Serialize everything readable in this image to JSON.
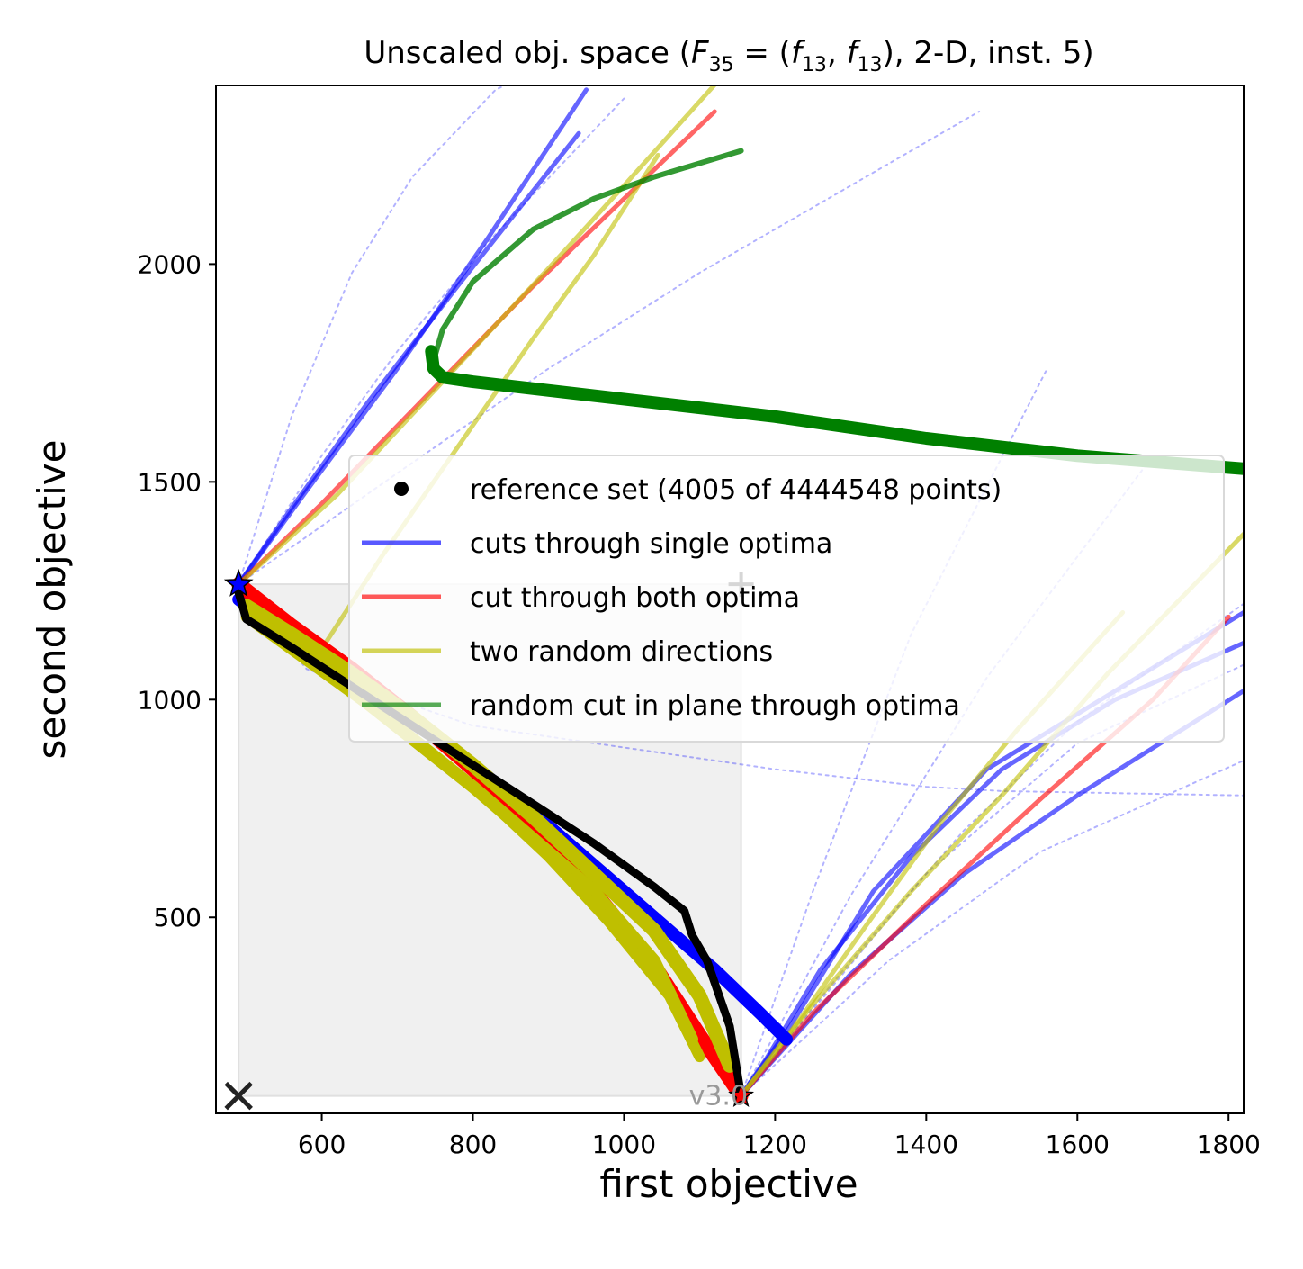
{
  "chart_data": {
    "type": "line",
    "title": "Unscaled obj. space (F35 = (f13, f13), 2-D, inst. 5)",
    "title_parts": {
      "prefix": "Unscaled obj. space (",
      "F": "F",
      "F_sub": "35",
      "eq": " = (",
      "f": "f",
      "f_sub": "13",
      "sep": ", ",
      "suffix": "), 2-D, inst. 5)"
    },
    "xlabel": "first objective",
    "ylabel": "second objective",
    "xlim": [
      460,
      1820
    ],
    "ylim": [
      50,
      2410
    ],
    "xticks": [
      600,
      800,
      1000,
      1200,
      1400,
      1600,
      1800
    ],
    "yticks": [
      500,
      1000,
      1500,
      2000
    ],
    "legend": {
      "placement": "center-right",
      "entries": [
        {
          "label": "reference set (4005 of 4444548 points)",
          "color": "#000000",
          "marker": "dot"
        },
        {
          "label": "cuts through single optima",
          "color": "#0000ff"
        },
        {
          "label": "cut through both optima",
          "color": "#ff0000"
        },
        {
          "label": "two random directions",
          "color": "#bfbf00"
        },
        {
          "label": "random cut in plane through optima",
          "color": "#008000"
        }
      ]
    },
    "ideal_point": {
      "x": 490,
      "y": 1265
    },
    "nadir_point": {
      "x": 1155,
      "y": 90
    },
    "nadir_marker_point": {
      "x": 1155,
      "y": 1265
    },
    "reference_point": {
      "x": 490,
      "y": 90
    },
    "region": {
      "x0": 490,
      "x1": 1155,
      "y0": 90,
      "y1": 1265,
      "color": "#f0f0f0"
    },
    "watermark": "v3.0",
    "series": [
      {
        "name": "reference set (4005 of 4444548 points)",
        "kind": "front",
        "color": "#000000",
        "width": 9,
        "opacity": 1,
        "x": [
          490,
          500,
          560,
          640,
          720,
          800,
          880,
          960,
          1040,
          1080,
          1090,
          1110,
          1140,
          1155
        ],
        "y": [
          1245,
          1185,
          1120,
          1030,
          940,
          850,
          760,
          670,
          570,
          515,
          460,
          400,
          250,
          90
        ]
      },
      {
        "kind": "dotted",
        "color": "#0000ff",
        "width": 2,
        "opacity": 0.3,
        "x": [
          490,
          560,
          640,
          720,
          830,
          950
        ],
        "y": [
          1265,
          1650,
          1980,
          2200,
          2400,
          2500
        ]
      },
      {
        "kind": "dotted",
        "color": "#0000ff",
        "width": 2,
        "opacity": 0.3,
        "x": [
          490,
          600,
          700,
          820,
          1000
        ],
        "y": [
          1265,
          1560,
          1800,
          2050,
          2380
        ]
      },
      {
        "kind": "dotted",
        "color": "#0000ff",
        "width": 2,
        "opacity": 0.3,
        "x": [
          490,
          700,
          900,
          1100,
          1300,
          1470
        ],
        "y": [
          1265,
          1520,
          1760,
          1980,
          2180,
          2350
        ]
      },
      {
        "kind": "dotted",
        "color": "#0000ff",
        "width": 2,
        "opacity": 0.3,
        "x": [
          490,
          580,
          800,
          1000,
          1200,
          1400,
          1500,
          1820
        ],
        "y": [
          1265,
          1070,
          940,
          890,
          840,
          800,
          790,
          780
        ]
      },
      {
        "kind": "dotted",
        "color": "#0000ff",
        "width": 2,
        "opacity": 0.3,
        "x": [
          1155,
          1300,
          1450,
          1600,
          1820
        ],
        "y": [
          90,
          400,
          700,
          950,
          1220
        ]
      },
      {
        "kind": "dotted",
        "color": "#0000ff",
        "width": 2,
        "opacity": 0.3,
        "x": [
          1155,
          1350,
          1550,
          1820
        ],
        "y": [
          90,
          400,
          650,
          860
        ]
      },
      {
        "kind": "dotted",
        "color": "#0000ff",
        "width": 2,
        "opacity": 0.3,
        "x": [
          1155,
          1300,
          1480,
          1700
        ],
        "y": [
          90,
          550,
          1050,
          1560
        ]
      },
      {
        "kind": "dotted",
        "color": "#0000ff",
        "width": 2,
        "opacity": 0.3,
        "x": [
          1155,
          1250,
          1380,
          1560
        ],
        "y": [
          90,
          560,
          1150,
          1760
        ]
      },
      {
        "kind": "dotted",
        "color": "#0000ff",
        "width": 2,
        "opacity": 0.3,
        "x": [
          1155,
          1400,
          1600,
          1820
        ],
        "y": [
          90,
          600,
          900,
          1080
        ]
      },
      {
        "name": "cuts through single optima",
        "kind": "cut",
        "color": "#0000ff",
        "width": 5,
        "opacity": 0.6,
        "x": [
          490,
          560,
          660,
          780,
          940
        ],
        "y": [
          1265,
          1440,
          1680,
          1950,
          2300
        ]
      },
      {
        "kind": "cut",
        "color": "#0000ff",
        "width": 5,
        "opacity": 0.6,
        "x": [
          490,
          580,
          700,
          820,
          950
        ],
        "y": [
          1265,
          1480,
          1760,
          2060,
          2400
        ]
      },
      {
        "kind": "cut",
        "color": "#0000ff",
        "width": 5,
        "opacity": 0.6,
        "x": [
          1155,
          1190,
          1260,
          1380,
          1500,
          1650,
          1820
        ],
        "y": [
          90,
          180,
          380,
          640,
          840,
          1000,
          1130
        ]
      },
      {
        "kind": "cut",
        "color": "#0000ff",
        "width": 5,
        "opacity": 0.6,
        "x": [
          1155,
          1220,
          1330,
          1480,
          1650,
          1820
        ],
        "y": [
          90,
          250,
          560,
          840,
          1020,
          1200
        ]
      },
      {
        "kind": "cut",
        "color": "#0000ff",
        "width": 5,
        "opacity": 0.6,
        "x": [
          1155,
          1300,
          1450,
          1600,
          1820
        ],
        "y": [
          90,
          370,
          600,
          780,
          1020
        ]
      },
      {
        "kind": "thick",
        "color": "#0000ff",
        "width": 14,
        "opacity": 1,
        "x": [
          490,
          560,
          640,
          720,
          800,
          880,
          960,
          1040,
          1120,
          1180,
          1215
        ],
        "y": [
          1230,
          1140,
          1050,
          950,
          850,
          740,
          620,
          500,
          380,
          280,
          220
        ]
      },
      {
        "name": "cut through both optima",
        "kind": "cut",
        "color": "#ff0000",
        "width": 5,
        "opacity": 0.6,
        "x": [
          490,
          600,
          740,
          880,
          1000,
          1120
        ],
        "y": [
          1265,
          1450,
          1700,
          1950,
          2150,
          2350
        ]
      },
      {
        "kind": "cut",
        "color": "#ff0000",
        "width": 5,
        "opacity": 0.6,
        "x": [
          1155,
          1250,
          1400,
          1550,
          1700,
          1800
        ],
        "y": [
          90,
          280,
          530,
          770,
          1000,
          1190
        ]
      },
      {
        "kind": "thick",
        "color": "#ff0000",
        "width": 16,
        "opacity": 1,
        "x": [
          490,
          560,
          640,
          720,
          800,
          880,
          960,
          1040,
          1100,
          1155
        ],
        "y": [
          1265,
          1170,
          1070,
          960,
          840,
          710,
          560,
          390,
          230,
          90
        ]
      },
      {
        "name": "two random directions",
        "kind": "cut",
        "color": "#bfbf00",
        "width": 5,
        "opacity": 0.6,
        "x": [
          490,
          620,
          760,
          900,
          1000,
          1140
        ],
        "y": [
          1265,
          1470,
          1730,
          1990,
          2180,
          2450
        ]
      },
      {
        "kind": "cut",
        "color": "#bfbf00",
        "width": 5,
        "opacity": 0.6,
        "x": [
          590,
          680,
          780,
          880,
          960,
          1045
        ],
        "y": [
          1090,
          1330,
          1580,
          1830,
          2020,
          2250
        ]
      },
      {
        "kind": "cut",
        "color": "#bfbf00",
        "width": 5,
        "opacity": 0.6,
        "x": [
          1155,
          1230,
          1320,
          1420,
          1520,
          1660
        ],
        "y": [
          90,
          260,
          480,
          720,
          930,
          1200
        ]
      },
      {
        "kind": "cut",
        "color": "#bfbf00",
        "width": 5,
        "opacity": 0.6,
        "x": [
          1155,
          1250,
          1380,
          1500,
          1640,
          1820
        ],
        "y": [
          90,
          300,
          560,
          780,
          1060,
          1380
        ]
      },
      {
        "kind": "thick",
        "color": "#bfbf00",
        "width": 16,
        "opacity": 1,
        "x": [
          500,
          560,
          640,
          720,
          800,
          880,
          960,
          1040,
          1100,
          1140
        ],
        "y": [
          1215,
          1150,
          1060,
          960,
          850,
          730,
          600,
          470,
          320,
          160
        ]
      },
      {
        "kind": "thick",
        "color": "#bfbf00",
        "width": 14,
        "opacity": 1,
        "x": [
          505,
          560,
          640,
          720,
          800,
          880,
          960,
          1040,
          1090
        ],
        "y": [
          1200,
          1120,
          1020,
          910,
          800,
          680,
          560,
          400,
          220
        ]
      },
      {
        "kind": "thick",
        "color": "#bfbf00",
        "width": 12,
        "opacity": 1,
        "x": [
          500,
          580,
          660,
          740,
          820,
          900,
          980,
          1060,
          1100
        ],
        "y": [
          1190,
          1090,
          990,
          880,
          770,
          640,
          490,
          320,
          180
        ]
      },
      {
        "name": "random cut in plane through optima",
        "kind": "cut",
        "color": "#008000",
        "width": 6,
        "opacity": 0.8,
        "x": [
          745,
          760,
          800,
          880,
          960,
          1040,
          1155
        ],
        "y": [
          1760,
          1850,
          1960,
          2080,
          2150,
          2200,
          2260
        ]
      },
      {
        "kind": "thick",
        "color": "#008000",
        "width": 14,
        "opacity": 1,
        "x": [
          745,
          748,
          760,
          800,
          1000,
          1200,
          1400,
          1600,
          1820
        ],
        "y": [
          1800,
          1760,
          1740,
          1730,
          1690,
          1650,
          1600,
          1560,
          1530
        ]
      }
    ]
  }
}
